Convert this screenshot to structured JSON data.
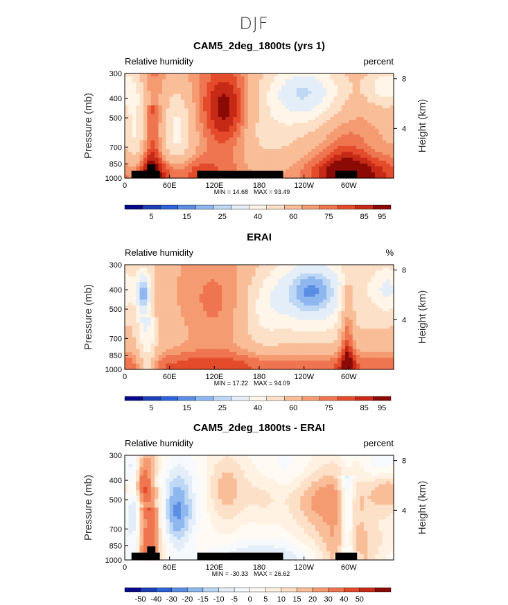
{
  "main_title": "DJF",
  "colors": {
    "rh_scale": [
      "#08088a",
      "#1d3fb6",
      "#2e62d8",
      "#5b8ee3",
      "#8fb7ef",
      "#bdd7f5",
      "#e4eef8",
      "#fff5e8",
      "#fde0c8",
      "#f9bd98",
      "#f59b72",
      "#ef7550",
      "#e34b2b",
      "#c62a16",
      "#8b0a06"
    ],
    "diff_scale": [
      "#08088a",
      "#1d3fb6",
      "#2e62d8",
      "#5b8ee3",
      "#8fb7ef",
      "#bdd7f5",
      "#e4eef8",
      "#f6f9fd",
      "#fffbf4",
      "#fff2e2",
      "#fde0c8",
      "#f9bd98",
      "#f59b72",
      "#ef7550",
      "#e34b2b",
      "#c62a16",
      "#8b0a06"
    ],
    "terrain": "#000000"
  },
  "chart_data": [
    {
      "type": "heatmap",
      "title": "CAM5_2deg_1800ts (yrs 1)",
      "left_label": "Relative humidity",
      "right_label": "percent",
      "ylabel": "Pressure (mb)",
      "ylabel_right": "Height (km)",
      "x_ticks": [
        "0",
        "60E",
        "120E",
        "180",
        "120W",
        "60W"
      ],
      "x_tick_values": [
        0,
        60,
        120,
        180,
        240,
        300
      ],
      "xlim": [
        0,
        360
      ],
      "y_ticks": [
        "300",
        "400",
        "500",
        "700",
        "850",
        "1000"
      ],
      "y_tick_values": [
        300,
        400,
        500,
        700,
        850,
        1000
      ],
      "ylim": [
        300,
        1000
      ],
      "height_ticks": [
        "8",
        "4"
      ],
      "height_tick_values": [
        8,
        4
      ],
      "min_label": "MIN =   14.68",
      "max_label": "MAX =   93.49",
      "min": 14.68,
      "max": 93.49,
      "colorbar_labels": [
        "5",
        "15",
        "25",
        "40",
        "60",
        "75",
        "85",
        "95"
      ],
      "colorbar_label_slots": [
        1,
        3,
        5,
        7,
        9,
        11,
        13,
        14
      ],
      "colorbar_scale": "rh_scale",
      "field": "model",
      "terrain": [
        {
          "lon0": 9,
          "lon1": 47,
          "p_top": 920
        },
        {
          "lon0": 30,
          "lon1": 41,
          "p_top": 855
        },
        {
          "lon0": 97,
          "lon1": 212,
          "p_top": 920
        },
        {
          "lon0": 282,
          "lon1": 311,
          "p_top": 920
        }
      ]
    },
    {
      "type": "heatmap",
      "title": "ERAI",
      "left_label": "Relative humidity",
      "right_label": "%",
      "ylabel": "Pressure (mb)",
      "ylabel_right": "Height (km)",
      "x_ticks": [
        "0",
        "60E",
        "120E",
        "180",
        "120W",
        "60W"
      ],
      "x_tick_values": [
        0,
        60,
        120,
        180,
        240,
        300
      ],
      "xlim": [
        0,
        360
      ],
      "y_ticks": [
        "300",
        "400",
        "500",
        "700",
        "850",
        "1000"
      ],
      "y_tick_values": [
        300,
        400,
        500,
        700,
        850,
        1000
      ],
      "ylim": [
        300,
        1000
      ],
      "height_ticks": [
        "8",
        "4"
      ],
      "height_tick_values": [
        8,
        4
      ],
      "min_label": "MIN =   17.22",
      "max_label": "MAX =   94.09",
      "min": 17.22,
      "max": 94.09,
      "colorbar_labels": [
        "5",
        "15",
        "25",
        "40",
        "60",
        "75",
        "85",
        "95"
      ],
      "colorbar_label_slots": [
        1,
        3,
        5,
        7,
        9,
        11,
        13,
        14
      ],
      "colorbar_scale": "rh_scale",
      "field": "obs",
      "terrain": []
    },
    {
      "type": "heatmap",
      "title": "CAM5_2deg_1800ts - ERAI",
      "left_label": "Relative humidity",
      "right_label": "percent",
      "ylabel": "Pressure (mb)",
      "ylabel_right": "Height (km)",
      "x_ticks": [
        "0",
        "60E",
        "120E",
        "180",
        "120W",
        "60W"
      ],
      "x_tick_values": [
        0,
        60,
        120,
        180,
        240,
        300
      ],
      "xlim": [
        0,
        360
      ],
      "y_ticks": [
        "300",
        "400",
        "500",
        "700",
        "850",
        "1000"
      ],
      "y_tick_values": [
        300,
        400,
        500,
        700,
        850,
        1000
      ],
      "ylim": [
        300,
        1000
      ],
      "height_ticks": [
        "8",
        "4"
      ],
      "height_tick_values": [
        8,
        4
      ],
      "min_label": "MIN = -30.33",
      "max_label": "MAX =   26.62",
      "min": -30.33,
      "max": 26.62,
      "colorbar_labels": [
        "-50",
        "-40",
        "-30",
        "-20",
        "-15",
        "-10",
        "-5",
        "0",
        "5",
        "10",
        "15",
        "20",
        "30",
        "40",
        "50"
      ],
      "colorbar_label_slots": [
        1,
        2,
        3,
        4,
        5,
        6,
        7,
        8,
        9,
        10,
        11,
        12,
        13,
        14,
        15
      ],
      "colorbar_scale": "diff_scale",
      "field": "diff",
      "terrain": [
        {
          "lon0": 9,
          "lon1": 47,
          "p_top": 920
        },
        {
          "lon0": 30,
          "lon1": 41,
          "p_top": 855
        },
        {
          "lon0": 97,
          "lon1": 212,
          "p_top": 920
        },
        {
          "lon0": 282,
          "lon1": 311,
          "p_top": 920
        }
      ]
    }
  ]
}
